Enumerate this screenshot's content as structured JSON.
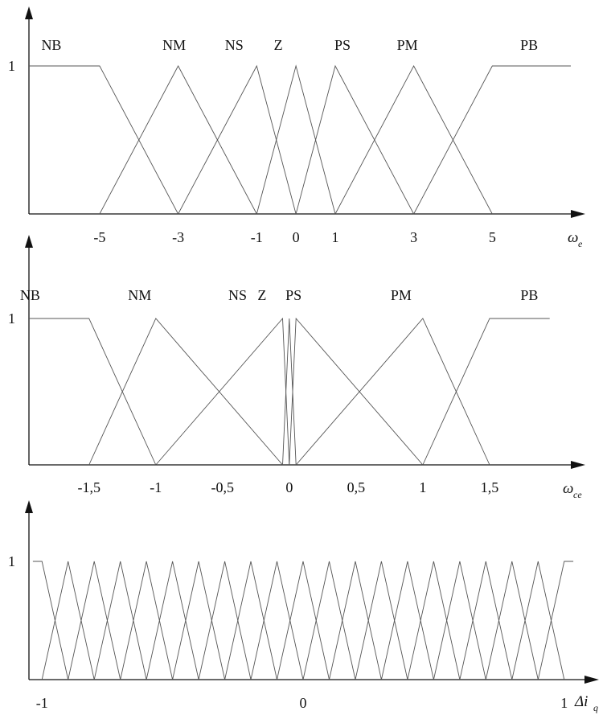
{
  "chart_data": [
    {
      "type": "line",
      "title": "",
      "xlabel": "ω",
      "xlabel_sub": "e",
      "ylabel": "",
      "y_tick": "1",
      "x_ticks": [
        "-5",
        "-3",
        "-1",
        "0",
        "1",
        "3",
        "5"
      ],
      "x_tick_values": [
        -5,
        -3,
        -1,
        0,
        1,
        3,
        5
      ],
      "xlim": [
        -6.8,
        7
      ],
      "ylim": [
        0,
        1
      ],
      "grid": false,
      "series": [
        {
          "name": "NB",
          "x": [
            -6.8,
            -5,
            -3
          ],
          "y": [
            1,
            1,
            0
          ]
        },
        {
          "name": "NM",
          "x": [
            -5,
            -3,
            -1
          ],
          "y": [
            0,
            1,
            0
          ]
        },
        {
          "name": "NS",
          "x": [
            -3,
            -1,
            0
          ],
          "y": [
            0,
            1,
            0
          ]
        },
        {
          "name": "Z",
          "x": [
            -1,
            0,
            1
          ],
          "y": [
            0,
            1,
            0
          ]
        },
        {
          "name": "PS",
          "x": [
            0,
            1,
            3
          ],
          "y": [
            0,
            1,
            0
          ]
        },
        {
          "name": "PM",
          "x": [
            1,
            3,
            5
          ],
          "y": [
            0,
            1,
            0
          ]
        },
        {
          "name": "PB",
          "x": [
            3,
            5,
            7
          ],
          "y": [
            0,
            1,
            1
          ]
        }
      ]
    },
    {
      "type": "line",
      "title": "",
      "xlabel": "ω",
      "xlabel_sub": "ce",
      "ylabel": "",
      "y_tick": "1",
      "x_ticks": [
        "-1,5",
        "-1",
        "-0,5",
        "0",
        "0,5",
        "1",
        "1,5"
      ],
      "x_tick_values": [
        -1.5,
        -1,
        -0.5,
        0,
        0.5,
        1,
        1.5
      ],
      "xlim": [
        -1.95,
        2
      ],
      "ylim": [
        0,
        1
      ],
      "grid": false,
      "series": [
        {
          "name": "NB",
          "x": [
            -1.95,
            -1.5,
            -1
          ],
          "y": [
            1,
            1,
            0
          ]
        },
        {
          "name": "NM",
          "x": [
            -1.5,
            -1,
            -0.05
          ],
          "y": [
            0,
            1,
            0
          ]
        },
        {
          "name": "NS",
          "x": [
            -1,
            -0.05,
            0
          ],
          "y": [
            0,
            1,
            0
          ]
        },
        {
          "name": "Z",
          "x": [
            -0.05,
            0,
            0.05
          ],
          "y": [
            0,
            1,
            0
          ]
        },
        {
          "name": "PS",
          "x": [
            0,
            0.05,
            1
          ],
          "y": [
            0,
            1,
            0
          ]
        },
        {
          "name": "PM",
          "x": [
            0.05,
            1,
            1.5
          ],
          "y": [
            0,
            1,
            0
          ]
        },
        {
          "name": "PB",
          "x": [
            1,
            1.5,
            1.95
          ],
          "y": [
            0,
            1,
            1
          ]
        }
      ]
    },
    {
      "type": "line",
      "title": "",
      "xlabel": "Δi",
      "xlabel_sub": "q",
      "ylabel": "",
      "y_tick": "1",
      "x_ticks": [
        "-1",
        "0",
        "1"
      ],
      "x_tick_values": [
        -1,
        0,
        1
      ],
      "xlim": [
        -1.05,
        1.05
      ],
      "ylim": [
        0,
        1
      ],
      "grid": false,
      "uniform_triangles": {
        "count": 21,
        "start": -1,
        "end": 1,
        "shoulders": true
      }
    }
  ]
}
